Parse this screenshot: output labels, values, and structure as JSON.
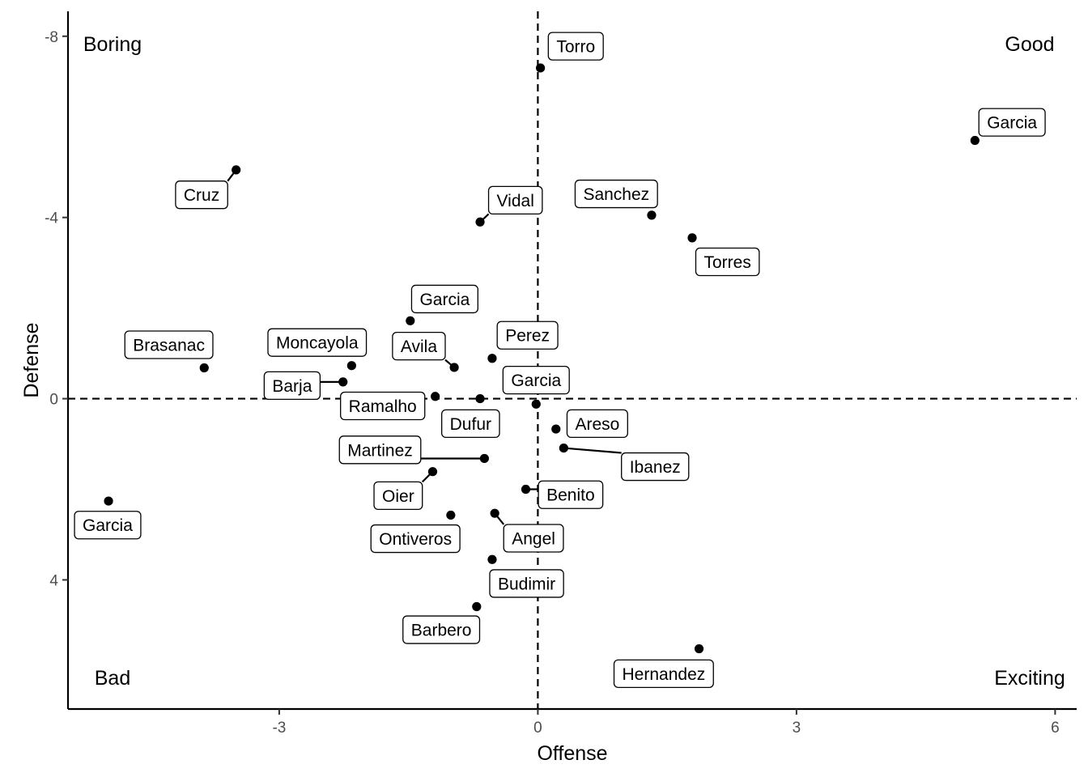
{
  "chart_data": {
    "type": "scatter",
    "xlabel": "Offense",
    "ylabel": "Defense",
    "xlim": [
      -5.45,
      6.25
    ],
    "ylim": [
      -8.55,
      6.85
    ],
    "y_reversed": true,
    "grid": false,
    "reference_lines": {
      "x": 0,
      "y": 0,
      "style": "dashed"
    },
    "x_ticks": [
      {
        "value": -3,
        "label": "-3"
      },
      {
        "value": 0,
        "label": "0"
      },
      {
        "value": 3,
        "label": "3"
      },
      {
        "value": 6,
        "label": "6"
      }
    ],
    "y_ticks": [
      {
        "value": -8,
        "label": "-8"
      },
      {
        "value": -4,
        "label": "-4"
      },
      {
        "value": 0,
        "label": "0"
      },
      {
        "value": 4,
        "label": "4"
      }
    ],
    "quadrant_labels": [
      {
        "text": "Boring",
        "corner": "top-left"
      },
      {
        "text": "Good",
        "corner": "top-right"
      },
      {
        "text": "Bad",
        "corner": "bottom-left"
      },
      {
        "text": "Exciting",
        "corner": "bottom-right"
      }
    ],
    "points": [
      {
        "label": "Torro",
        "x": 0.03,
        "y": -7.3,
        "lx": 0.44,
        "ly": -7.78
      },
      {
        "label": "Garcia",
        "x": 5.07,
        "y": -5.7,
        "lx": 5.5,
        "ly": -6.1
      },
      {
        "label": "Cruz",
        "x": -3.5,
        "y": -5.05,
        "lx": -3.9,
        "ly": -4.5
      },
      {
        "label": "Vidal",
        "x": -0.67,
        "y": -3.9,
        "lx": -0.26,
        "ly": -4.38
      },
      {
        "label": "Sanchez",
        "x": 1.32,
        "y": -4.05,
        "lx": 0.91,
        "ly": -4.52
      },
      {
        "label": "Torres",
        "x": 1.79,
        "y": -3.55,
        "lx": 2.2,
        "ly": -3.02
      },
      {
        "label": "Garcia",
        "x": -1.48,
        "y": -1.72,
        "lx": -1.08,
        "ly": -2.2
      },
      {
        "label": "Brasanac",
        "x": -3.87,
        "y": -0.68,
        "lx": -4.28,
        "ly": -1.19
      },
      {
        "label": "Moncayola",
        "x": -2.16,
        "y": -0.73,
        "lx": -2.56,
        "ly": -1.24
      },
      {
        "label": "Avila",
        "x": -0.97,
        "y": -0.69,
        "lx": -1.38,
        "ly": -1.16
      },
      {
        "label": "Perez",
        "x": -0.53,
        "y": -0.89,
        "lx": -0.12,
        "ly": -1.4
      },
      {
        "label": "Barja",
        "x": -2.26,
        "y": -0.37,
        "lx": -2.85,
        "ly": -0.29
      },
      {
        "label": "Garcia",
        "x": -0.02,
        "y": 0.12,
        "lx": -0.02,
        "ly": -0.41
      },
      {
        "label": "Ramalho",
        "x": -1.19,
        "y": -0.05,
        "lx": -1.8,
        "ly": 0.16
      },
      {
        "label": "Dufur",
        "x": -0.67,
        "y": 0.0,
        "lx": -0.78,
        "ly": 0.55
      },
      {
        "label": "Areso",
        "x": 0.21,
        "y": 0.67,
        "lx": 0.69,
        "ly": 0.55
      },
      {
        "label": "Martinez",
        "x": -0.62,
        "y": 1.32,
        "lx": -1.83,
        "ly": 1.13
      },
      {
        "label": "Ibanez",
        "x": 0.3,
        "y": 1.09,
        "lx": 1.36,
        "ly": 1.5
      },
      {
        "label": "Oier",
        "x": -1.22,
        "y": 1.61,
        "lx": -1.62,
        "ly": 2.14
      },
      {
        "label": "Benito",
        "x": -0.14,
        "y": 2.0,
        "lx": 0.38,
        "ly": 2.12
      },
      {
        "label": "Garcia",
        "x": -4.98,
        "y": 2.26,
        "lx": -4.99,
        "ly": 2.79
      },
      {
        "label": "Ontiveros",
        "x": -1.01,
        "y": 2.57,
        "lx": -1.42,
        "ly": 3.09
      },
      {
        "label": "Angel",
        "x": -0.5,
        "y": 2.53,
        "lx": -0.05,
        "ly": 3.08
      },
      {
        "label": "Budimir",
        "x": -0.53,
        "y": 3.55,
        "lx": -0.13,
        "ly": 4.08
      },
      {
        "label": "Barbero",
        "x": -0.71,
        "y": 4.59,
        "lx": -1.12,
        "ly": 5.1
      },
      {
        "label": "Hernandez",
        "x": 1.87,
        "y": 5.52,
        "lx": 1.46,
        "ly": 6.07
      }
    ]
  }
}
